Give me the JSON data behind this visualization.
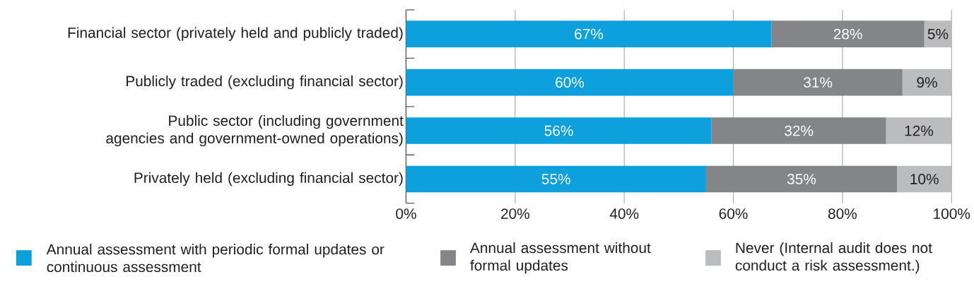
{
  "chart_data": {
    "type": "bar",
    "orientation": "horizontal",
    "stacked": true,
    "categories": [
      "Financial sector (privately held and publicly traded)",
      "Publicly traded (excluding financial sector)",
      "Public sector (including government agencies and government-owned operations)",
      "Privately held (excluding financial sector)"
    ],
    "series": [
      {
        "name": "Annual assessment with periodic formal updates or continuous assessment",
        "color": "#0ea0dc",
        "values": [
          67,
          60,
          56,
          55
        ],
        "value_labels": [
          "67%",
          "60%",
          "56%",
          "55%"
        ]
      },
      {
        "name": "Annual assessment without formal updates",
        "color": "#848589",
        "values": [
          28,
          31,
          32,
          35
        ],
        "value_labels": [
          "28%",
          "31%",
          "32%",
          "35%"
        ]
      },
      {
        "name": "Never (Internal audit does not conduct a risk assessment.)",
        "color": "#bbbcbe",
        "values": [
          5,
          9,
          12,
          10
        ],
        "value_labels": [
          "5%",
          "9%",
          "12%",
          "10%"
        ]
      }
    ],
    "xlim": [
      0,
      100
    ],
    "xticks": [
      {
        "value": 0,
        "label": "0%"
      },
      {
        "value": 20,
        "label": "20%"
      },
      {
        "value": 40,
        "label": "40%"
      },
      {
        "value": 60,
        "label": "60%"
      },
      {
        "value": 80,
        "label": "80%"
      },
      {
        "value": 100,
        "label": "100%"
      }
    ],
    "grid": "x",
    "legend": "bottom"
  }
}
